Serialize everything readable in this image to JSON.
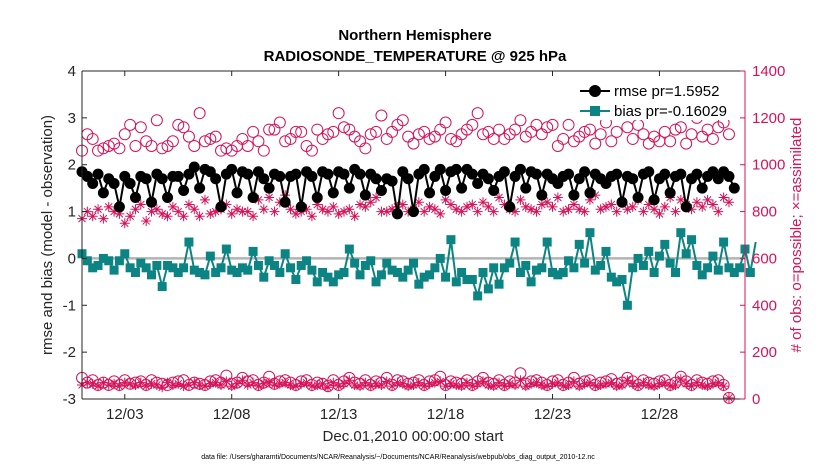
{
  "chart_data": {
    "type": "line",
    "title": "Northern Hemisphere",
    "subtitle": "RADIOSONDE_TEMPERATURE @ 925 hPa",
    "xlabel": "Dec.01,2010 00:00:00 start",
    "ylabel": "rmse and bias (model - observation)",
    "ylabel_right": "# of obs: o=possible; ×=assimilated",
    "footnote": "data file: /Users/gharamti/Documents/NCAR/Reanalysis/~/Documents/NCAR/Reanalysis/webpub/obs_diag_output_2010-12.nc",
    "xlim": [
      1,
      32
    ],
    "ylim": [
      -3,
      4
    ],
    "ylim_right": [
      0,
      1400
    ],
    "x_ticks": [
      3,
      8,
      13,
      18,
      23,
      28
    ],
    "x_tick_labels": [
      "12/03",
      "12/08",
      "12/13",
      "12/18",
      "12/23",
      "12/28"
    ],
    "y_ticks": [
      -3,
      -2,
      -1,
      0,
      1,
      2,
      3,
      4
    ],
    "y_tick_labels": [
      "-3",
      "-2",
      "-1",
      "0",
      "1",
      "2",
      "3",
      "4"
    ],
    "y_ticks_right": [
      0,
      200,
      400,
      600,
      800,
      1000,
      1200,
      1400
    ],
    "y_tick_labels_right": [
      "0",
      "200",
      "400",
      "600",
      "800",
      "1000",
      "1200",
      "1400"
    ],
    "zero_line": 0,
    "legend": {
      "position": "top-right",
      "entries": [
        "rmse pr=1.5952",
        "bias pr=-0.16029"
      ]
    },
    "x_start": 1,
    "x_step": 0.25,
    "series": [
      {
        "name": "rmse pr=1.5952",
        "axis": "left",
        "color": "#000000",
        "marker": "filled-circle",
        "values": [
          1.85,
          1.75,
          1.6,
          1.8,
          1.4,
          1.7,
          1.6,
          1.1,
          1.75,
          1.6,
          1.3,
          1.75,
          1.7,
          1.2,
          1.8,
          1.7,
          1.3,
          1.75,
          1.75,
          1.45,
          1.8,
          1.95,
          1.5,
          1.9,
          1.85,
          1.7,
          1.1,
          1.8,
          1.9,
          1.4,
          1.85,
          1.8,
          1.3,
          1.85,
          1.7,
          1.5,
          1.8,
          1.75,
          1.2,
          1.75,
          1.8,
          1.1,
          1.85,
          1.75,
          1.3,
          1.85,
          1.8,
          1.4,
          1.85,
          1.8,
          1.5,
          1.9,
          1.8,
          1.35,
          1.8,
          1.7,
          1.45,
          1.7,
          1.65,
          0.95,
          1.85,
          1.7,
          1.0,
          1.8,
          1.9,
          1.4,
          1.75,
          1.9,
          1.45,
          1.85,
          1.9,
          1.5,
          1.9,
          1.8,
          1.6,
          1.8,
          1.7,
          1.45,
          1.75,
          1.85,
          1.1,
          1.75,
          1.9,
          1.5,
          1.85,
          1.8,
          1.35,
          1.8,
          1.7,
          1.6,
          1.75,
          1.8,
          1.35,
          1.7,
          1.85,
          1.4,
          1.8,
          1.7,
          1.6,
          1.75,
          1.8,
          1.2,
          1.75,
          1.7,
          1.3,
          1.8,
          1.85,
          1.25,
          1.7,
          1.8,
          1.4,
          1.75,
          1.8,
          1.1,
          1.7,
          1.8,
          1.5,
          1.75,
          1.85,
          1.7,
          1.85,
          1.75,
          1.5
        ]
      },
      {
        "name": "bias pr=-0.16029",
        "axis": "left",
        "color": "#0c8484",
        "marker": "filled-square",
        "values": [
          0.1,
          -0.05,
          -0.2,
          -0.15,
          0.0,
          -0.05,
          -0.25,
          -0.05,
          0.1,
          -0.2,
          -0.3,
          -0.1,
          -0.2,
          -0.35,
          -0.15,
          -0.6,
          -0.15,
          -0.2,
          -0.3,
          -0.2,
          0.35,
          -0.25,
          -0.3,
          -0.35,
          0.05,
          -0.3,
          -0.2,
          0.2,
          -0.25,
          -0.3,
          -0.2,
          -0.25,
          0.15,
          -0.15,
          -0.4,
          -0.05,
          -0.15,
          -0.3,
          0.1,
          -0.2,
          -0.45,
          -0.15,
          -0.05,
          -0.25,
          -0.5,
          -0.3,
          -0.4,
          -0.5,
          -0.35,
          -0.3,
          0.2,
          -0.1,
          -0.35,
          -0.15,
          -0.05,
          -0.5,
          -0.35,
          -0.1,
          -0.25,
          -0.3,
          -0.4,
          -0.25,
          -0.1,
          -0.55,
          -0.4,
          -0.35,
          -0.2,
          0.0,
          -0.4,
          0.4,
          -0.5,
          -0.3,
          -0.45,
          -0.45,
          -0.8,
          -0.3,
          -0.65,
          -0.2,
          -0.55,
          -0.2,
          -0.1,
          0.35,
          -0.3,
          -0.15,
          -0.5,
          -0.25,
          -0.2,
          0.35,
          -0.3,
          -0.35,
          -0.3,
          -0.05,
          -0.2,
          0.3,
          -0.1,
          0.55,
          -0.25,
          -0.15,
          0.15,
          -0.4,
          -0.5,
          -0.45,
          -1.0,
          -0.2,
          0.0,
          -0.15,
          0.15,
          -0.3,
          0.05,
          0.3,
          -0.1,
          -0.3,
          0.55,
          0.1,
          0.4,
          -0.15,
          -0.35,
          -0.2,
          0.05,
          -0.25,
          0.35,
          -0.2,
          -0.3,
          -0.2,
          0.2,
          -0.3,
          0.35
        ]
      },
      {
        "name": "obs possible",
        "axis": "right",
        "color": "#d6135a",
        "marker": "open-circle",
        "values": [
          1060,
          1130,
          1110,
          1060,
          1070,
          1080,
          1090,
          1070,
          1130,
          1170,
          1080,
          1160,
          1100,
          1080,
          1190,
          1070,
          1080,
          1100,
          1170,
          1160,
          1120,
          1080,
          1220,
          1100,
          1110,
          1120,
          1060,
          1070,
          1060,
          1080,
          1110,
          1080,
          1140,
          1100,
          1060,
          1150,
          1150,
          1180,
          1100,
          1110,
          1140,
          1140,
          1080,
          1060,
          1150,
          1110,
          1130,
          1140,
          1220,
          1160,
          1150,
          1120,
          1100,
          1070,
          1130,
          1140,
          1210,
          1110,
          1140,
          1170,
          1190,
          1120,
          1090,
          1130,
          1140,
          1110,
          1120,
          1150,
          1180,
          1110,
          1100,
          1130,
          1150,
          1170,
          1220,
          1130,
          1140,
          1110,
          1150,
          1110,
          1130,
          1150,
          1190,
          1120,
          1140,
          1170,
          1130,
          1160,
          1170,
          1080,
          1110,
          1170,
          1100,
          1120,
          1140,
          1150,
          1090,
          1130,
          1180,
          1100,
          1140,
          1220,
          1160,
          1110,
          1170,
          1130,
          1090,
          1120,
          1100,
          1140,
          1100,
          1150,
          1160,
          1090,
          1130,
          1200,
          1120,
          1150,
          1110,
          1160,
          1180,
          1130
        ]
      },
      {
        "name": "obs assimilated",
        "axis": "right",
        "color": "#d6135a",
        "marker": "asterisk",
        "values": [
          770,
          800,
          780,
          810,
          770,
          820,
          800,
          790,
          750,
          780,
          810,
          830,
          760,
          800,
          810,
          790,
          780,
          820,
          800,
          780,
          830,
          810,
          780,
          850,
          790,
          800,
          810,
          830,
          790,
          810,
          800,
          800,
          780,
          850,
          810,
          860,
          800,
          840,
          870,
          810,
          790,
          800,
          810,
          780,
          830,
          810,
          800,
          820,
          790,
          800,
          810,
          780,
          830,
          820,
          840,
          860,
          800,
          800,
          810,
          820,
          830,
          800,
          810,
          840,
          800,
          820,
          810,
          790,
          850,
          830,
          810,
          800,
          820,
          830,
          800,
          840,
          820,
          800,
          860,
          830,
          810,
          800,
          850,
          820,
          810,
          800,
          830,
          840,
          820,
          860,
          800,
          810,
          830,
          810,
          800,
          850,
          870,
          810,
          820,
          830,
          800,
          840,
          810,
          820,
          850,
          800,
          830,
          810,
          790,
          820,
          860,
          800,
          850,
          830,
          810,
          840,
          820,
          850,
          830,
          800,
          860,
          840
        ]
      },
      {
        "name": "obs possible (lower)",
        "axis": "right",
        "color": "#d6135a",
        "marker": "open-circle",
        "values": [
          90,
          70,
          80,
          60,
          70,
          60,
          75,
          60,
          80,
          65,
          70,
          75,
          60,
          80,
          70,
          65,
          60,
          70,
          75,
          80,
          60,
          70,
          65,
          60,
          75,
          80,
          70,
          100,
          65,
          70,
          90,
          75,
          80,
          60,
          70,
          95,
          65,
          75,
          80,
          70,
          60,
          75,
          80,
          60,
          70,
          65,
          55,
          80,
          60,
          75,
          90,
          70,
          65,
          80,
          60,
          75,
          70,
          90,
          60,
          80,
          75,
          65,
          70,
          80,
          60,
          75,
          80,
          95,
          60,
          75,
          70,
          65,
          80,
          60,
          75,
          90,
          70,
          65,
          80,
          60,
          75,
          70,
          110,
          65,
          75,
          80,
          70,
          60,
          75,
          80,
          60,
          70,
          90,
          65,
          75,
          80,
          60,
          70,
          75,
          85,
          65,
          70,
          90,
          75,
          60,
          80,
          70,
          65,
          75,
          80,
          60,
          70,
          95,
          75,
          60,
          80,
          70,
          65,
          75,
          80,
          60,
          5
        ]
      },
      {
        "name": "obs assimilated (lower)",
        "axis": "right",
        "color": "#d6135a",
        "marker": "asterisk",
        "values": [
          60,
          70,
          65,
          55,
          70,
          60,
          65,
          55,
          70,
          65,
          60,
          70,
          55,
          65,
          60,
          50,
          70,
          60,
          65,
          55,
          60,
          70,
          60,
          55,
          65,
          70,
          60,
          75,
          55,
          65,
          80,
          60,
          70,
          55,
          65,
          70,
          60,
          65,
          70,
          60,
          55,
          65,
          70,
          55,
          60,
          65,
          50,
          70,
          55,
          65,
          80,
          60,
          55,
          70,
          55,
          65,
          60,
          75,
          55,
          70,
          65,
          55,
          60,
          70,
          55,
          65,
          70,
          75,
          55,
          65,
          60,
          55,
          70,
          55,
          65,
          75,
          60,
          55,
          70,
          55,
          65,
          60,
          80,
          55,
          65,
          70,
          60,
          55,
          65,
          70,
          55,
          60,
          75,
          55,
          65,
          70,
          55,
          60,
          65,
          70,
          55,
          60,
          80,
          65,
          55,
          70,
          60,
          55,
          65,
          70,
          55,
          60,
          85,
          65,
          55,
          70,
          60,
          55,
          65,
          70,
          55,
          5
        ]
      }
    ]
  }
}
